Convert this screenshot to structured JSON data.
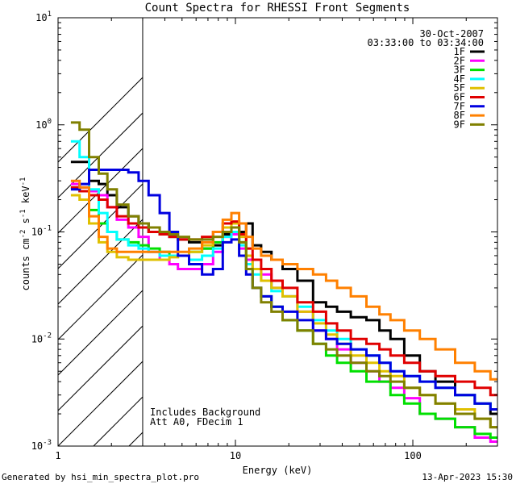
{
  "chart_data": {
    "type": "line",
    "title": "Count Spectra for RHESSI Front Segments",
    "xlabel": "Energy (keV)",
    "ylabel_main": "counts cm",
    "ylabel_exp1": "-2",
    "ylabel_mid": " s",
    "ylabel_exp2": "-1",
    "ylabel_end": " keV",
    "ylabel_exp3": "-1",
    "xscale": "log",
    "yscale": "log",
    "xlim": [
      1,
      300
    ],
    "ylim": [
      0.001,
      10
    ],
    "x_ticks": [
      {
        "value": 1,
        "label": "1"
      },
      {
        "value": 10,
        "label": "10"
      },
      {
        "value": 100,
        "label": "100"
      }
    ],
    "y_ticks": [
      {
        "value": 0.001,
        "base": "10",
        "exp": "-3"
      },
      {
        "value": 0.01,
        "base": "10",
        "exp": "-2"
      },
      {
        "value": 0.1,
        "base": "10",
        "exp": "-1"
      },
      {
        "value": 1,
        "base": "10",
        "exp": "0"
      },
      {
        "value": 10,
        "base": "10",
        "exp": "1"
      }
    ],
    "hatched_region": [
      1,
      3
    ],
    "date": "30-Oct-2007",
    "time_range": "03:33:00 to 03:34:00",
    "annotations": [
      "Includes Background",
      "Att A0, FDecim 1"
    ],
    "series": [
      {
        "name": "1F",
        "color": "#000000",
        "x": [
          1.25,
          1.4,
          1.6,
          1.8,
          2,
          2.3,
          2.7,
          3,
          3.5,
          4,
          4.5,
          5,
          6,
          7,
          8,
          9,
          10,
          11,
          12,
          13,
          15,
          17,
          20,
          25,
          30,
          35,
          40,
          50,
          60,
          70,
          80,
          100,
          120,
          150,
          200,
          250,
          300
        ],
        "y": [
          0.45,
          0.45,
          0.3,
          0.28,
          0.22,
          0.17,
          0.14,
          0.12,
          0.1,
          0.095,
          0.09,
          0.085,
          0.08,
          0.07,
          0.075,
          0.095,
          0.11,
          0.1,
          0.12,
          0.075,
          0.065,
          0.055,
          0.045,
          0.035,
          0.022,
          0.02,
          0.018,
          0.016,
          0.015,
          0.012,
          0.01,
          0.007,
          0.005,
          0.004,
          0.003,
          0.0025,
          0.002
        ]
      },
      {
        "name": "2F",
        "color": "#ff00ff",
        "x": [
          1.25,
          1.4,
          1.6,
          1.8,
          2,
          2.3,
          2.7,
          3,
          3.5,
          4,
          4.5,
          5,
          6,
          7,
          8,
          9,
          10,
          11,
          12,
          13,
          15,
          17,
          20,
          25,
          30,
          35,
          40,
          50,
          60,
          70,
          80,
          100,
          120,
          150,
          200,
          250,
          300
        ],
        "y": [
          0.28,
          0.26,
          0.24,
          0.22,
          0.17,
          0.13,
          0.11,
          0.09,
          0.065,
          0.055,
          0.05,
          0.045,
          0.045,
          0.05,
          0.065,
          0.09,
          0.095,
          0.07,
          0.055,
          0.045,
          0.04,
          0.03,
          0.025,
          0.018,
          0.012,
          0.01,
          0.008,
          0.006,
          0.005,
          0.004,
          0.0035,
          0.0028,
          0.002,
          0.0018,
          0.0015,
          0.0012,
          0.0011
        ]
      },
      {
        "name": "3F",
        "color": "#00e000",
        "x": [
          1.25,
          1.4,
          1.6,
          1.8,
          2,
          2.3,
          2.7,
          3,
          3.5,
          4,
          4.5,
          5,
          6,
          7,
          8,
          9,
          10,
          11,
          12,
          13,
          15,
          17,
          20,
          25,
          30,
          35,
          40,
          50,
          60,
          70,
          80,
          100,
          120,
          150,
          200,
          250,
          300
        ],
        "y": [
          0.26,
          0.24,
          0.16,
          0.12,
          0.1,
          0.085,
          0.08,
          0.075,
          0.07,
          0.065,
          0.06,
          0.06,
          0.065,
          0.07,
          0.08,
          0.1,
          0.11,
          0.08,
          0.045,
          0.03,
          0.025,
          0.02,
          0.015,
          0.012,
          0.009,
          0.007,
          0.006,
          0.005,
          0.004,
          0.004,
          0.003,
          0.0025,
          0.002,
          0.0018,
          0.0015,
          0.0013,
          0.0012
        ]
      },
      {
        "name": "4F",
        "color": "#00ffff",
        "x": [
          1.25,
          1.4,
          1.6,
          1.8,
          2,
          2.3,
          2.7,
          3,
          3.5,
          4,
          4.5,
          5,
          6,
          7,
          8,
          9,
          10,
          11,
          12,
          13,
          15,
          17,
          20,
          25,
          30,
          35,
          40,
          50,
          60,
          70,
          80,
          100,
          120,
          150,
          200,
          250,
          300
        ],
        "y": [
          0.7,
          0.5,
          0.25,
          0.15,
          0.1,
          0.085,
          0.075,
          0.07,
          0.065,
          0.06,
          0.06,
          0.06,
          0.055,
          0.06,
          0.07,
          0.09,
          0.1,
          0.075,
          0.05,
          0.04,
          0.035,
          0.028,
          0.025,
          0.02,
          0.015,
          0.012,
          0.01,
          0.008,
          0.007,
          0.006,
          0.005,
          0.0045,
          0.004,
          0.0035,
          0.003,
          0.0025,
          0.0022
        ]
      },
      {
        "name": "5F",
        "color": "#e0c000",
        "x": [
          1.25,
          1.4,
          1.6,
          1.8,
          2,
          2.3,
          2.7,
          3,
          3.5,
          4,
          4.5,
          5,
          6,
          7,
          8,
          9,
          10,
          11,
          12,
          13,
          15,
          17,
          20,
          25,
          30,
          35,
          40,
          50,
          60,
          70,
          80,
          100,
          120,
          150,
          200,
          250,
          300
        ],
        "y": [
          0.22,
          0.2,
          0.12,
          0.08,
          0.065,
          0.058,
          0.055,
          0.055,
          0.055,
          0.055,
          0.058,
          0.06,
          0.065,
          0.075,
          0.09,
          0.11,
          0.12,
          0.09,
          0.06,
          0.045,
          0.035,
          0.03,
          0.025,
          0.018,
          0.014,
          0.011,
          0.009,
          0.007,
          0.006,
          0.005,
          0.0045,
          0.0035,
          0.003,
          0.0025,
          0.0022,
          0.0018,
          0.0015
        ]
      },
      {
        "name": "6F",
        "color": "#e00000",
        "x": [
          1.25,
          1.4,
          1.6,
          1.8,
          2,
          2.3,
          2.7,
          3,
          3.5,
          4,
          4.5,
          5,
          6,
          7,
          8,
          9,
          10,
          11,
          12,
          13,
          15,
          17,
          20,
          25,
          30,
          35,
          40,
          50,
          60,
          70,
          80,
          100,
          120,
          150,
          200,
          250,
          300
        ],
        "y": [
          0.26,
          0.24,
          0.22,
          0.2,
          0.17,
          0.14,
          0.12,
          0.11,
          0.1,
          0.095,
          0.09,
          0.085,
          0.085,
          0.09,
          0.1,
          0.12,
          0.125,
          0.095,
          0.07,
          0.055,
          0.045,
          0.035,
          0.03,
          0.022,
          0.018,
          0.014,
          0.012,
          0.01,
          0.009,
          0.008,
          0.007,
          0.006,
          0.005,
          0.0045,
          0.004,
          0.0035,
          0.003
        ]
      },
      {
        "name": "7F",
        "color": "#0000e0",
        "x": [
          1.25,
          1.4,
          1.6,
          1.8,
          2,
          2.3,
          2.7,
          3,
          3.5,
          4,
          4.5,
          5,
          6,
          7,
          8,
          9,
          10,
          11,
          12,
          13,
          15,
          17,
          20,
          25,
          30,
          35,
          40,
          50,
          60,
          70,
          80,
          100,
          120,
          150,
          200,
          250,
          300
        ],
        "y": [
          0.25,
          0.28,
          0.38,
          0.38,
          0.38,
          0.38,
          0.36,
          0.3,
          0.22,
          0.15,
          0.1,
          0.06,
          0.05,
          0.04,
          0.045,
          0.08,
          0.085,
          0.06,
          0.04,
          0.03,
          0.025,
          0.02,
          0.018,
          0.015,
          0.012,
          0.01,
          0.009,
          0.008,
          0.007,
          0.006,
          0.005,
          0.0045,
          0.004,
          0.0035,
          0.003,
          0.0025,
          0.0022
        ]
      },
      {
        "name": "8F",
        "color": "#ff8000",
        "x": [
          1.25,
          1.4,
          1.6,
          1.8,
          2,
          2.3,
          2.7,
          3,
          3.5,
          4,
          4.5,
          5,
          6,
          7,
          8,
          9,
          10,
          11,
          12,
          13,
          15,
          17,
          20,
          25,
          30,
          35,
          40,
          50,
          60,
          70,
          80,
          100,
          120,
          150,
          200,
          250,
          300
        ],
        "y": [
          0.3,
          0.26,
          0.14,
          0.09,
          0.07,
          0.065,
          0.065,
          0.065,
          0.065,
          0.065,
          0.065,
          0.065,
          0.07,
          0.08,
          0.1,
          0.13,
          0.15,
          0.12,
          0.09,
          0.07,
          0.06,
          0.055,
          0.05,
          0.045,
          0.04,
          0.035,
          0.03,
          0.025,
          0.02,
          0.017,
          0.015,
          0.012,
          0.01,
          0.008,
          0.006,
          0.005,
          0.0042
        ]
      },
      {
        "name": "9F",
        "color": "#808000",
        "x": [
          1.25,
          1.4,
          1.6,
          1.8,
          2,
          2.3,
          2.7,
          3,
          3.5,
          4,
          4.5,
          5,
          6,
          7,
          8,
          9,
          10,
          11,
          12,
          13,
          15,
          17,
          20,
          25,
          30,
          35,
          40,
          50,
          60,
          70,
          80,
          100,
          120,
          150,
          200,
          250,
          300
        ],
        "y": [
          1.05,
          0.9,
          0.5,
          0.35,
          0.25,
          0.18,
          0.14,
          0.12,
          0.11,
          0.1,
          0.095,
          0.09,
          0.085,
          0.085,
          0.09,
          0.1,
          0.11,
          0.08,
          0.045,
          0.03,
          0.022,
          0.018,
          0.015,
          0.012,
          0.009,
          0.008,
          0.007,
          0.006,
          0.005,
          0.0045,
          0.004,
          0.0035,
          0.003,
          0.0025,
          0.002,
          0.0018,
          0.0015
        ]
      }
    ]
  },
  "footer": {
    "left": "Generated by hsi_min_spectra_plot.pro",
    "right": "13-Apr-2023 15:30"
  }
}
